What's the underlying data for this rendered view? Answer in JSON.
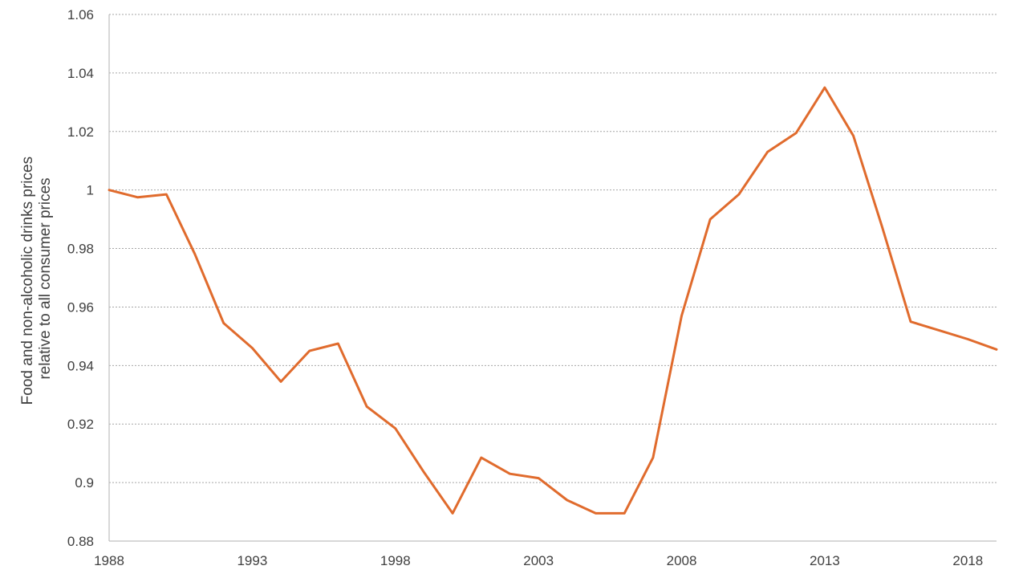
{
  "chart_data": {
    "type": "line",
    "title": "",
    "xlabel": "",
    "ylabel_lines": [
      "Food and non-alcoholic drinks prices",
      "relative to all consumer prices"
    ],
    "xlim": [
      1988,
      2019
    ],
    "ylim": [
      0.88,
      1.06
    ],
    "y_ticks": [
      "0.88",
      "0.9",
      "0.92",
      "0.94",
      "0.96",
      "0.98",
      "1",
      "1.02",
      "1.04",
      "1.06"
    ],
    "x_ticks": [
      "1988",
      "1993",
      "1998",
      "2003",
      "2008",
      "2013",
      "2018"
    ],
    "grid": "horizontal-dotted",
    "legend": "none",
    "series": [
      {
        "color": "#e06b2d",
        "x": [
          1988,
          1989,
          1990,
          1991,
          1992,
          1993,
          1994,
          1995,
          1996,
          1997,
          1998,
          1999,
          2000,
          2001,
          2002,
          2003,
          2004,
          2005,
          2006,
          2007,
          2008,
          2009,
          2010,
          2011,
          2012,
          2013,
          2014,
          2015,
          2016,
          2017,
          2018,
          2019
        ],
        "values": [
          1.0,
          0.9975,
          0.9985,
          0.978,
          0.9545,
          0.946,
          0.9345,
          0.945,
          0.9475,
          0.926,
          0.9185,
          0.9035,
          0.8895,
          0.9085,
          0.903,
          0.9015,
          0.894,
          0.8895,
          0.8895,
          0.9085,
          0.957,
          0.99,
          0.9985,
          1.013,
          1.0195,
          1.035,
          1.0185,
          0.9875,
          0.955,
          0.952,
          0.949,
          0.9455
        ]
      }
    ]
  }
}
